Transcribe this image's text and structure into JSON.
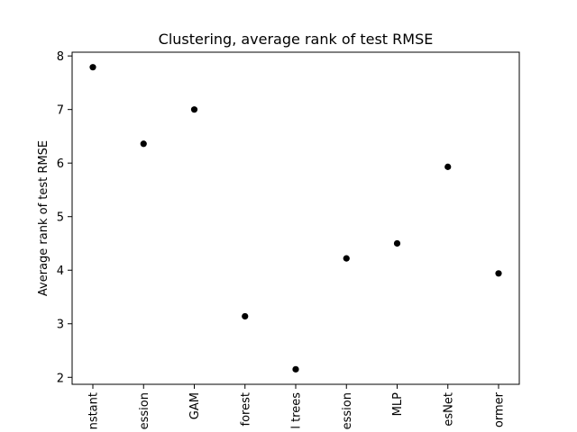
{
  "chart_data": {
    "type": "scatter",
    "title": "Clustering, average rank of test RMSE",
    "xlabel": "",
    "ylabel": "Average rank of test RMSE",
    "categories": [
      "nstant",
      "ession",
      "GAM",
      "forest",
      "l trees",
      "ession",
      "MLP",
      "esNet",
      "ormer"
    ],
    "values": [
      7.79,
      6.36,
      7.0,
      3.14,
      2.15,
      4.22,
      4.5,
      5.93,
      3.94
    ],
    "ylim": [
      1.87,
      8.07
    ],
    "yticks": [
      2,
      3,
      4,
      5,
      6,
      7,
      8
    ],
    "grid": false,
    "marker_color": "#000000"
  }
}
